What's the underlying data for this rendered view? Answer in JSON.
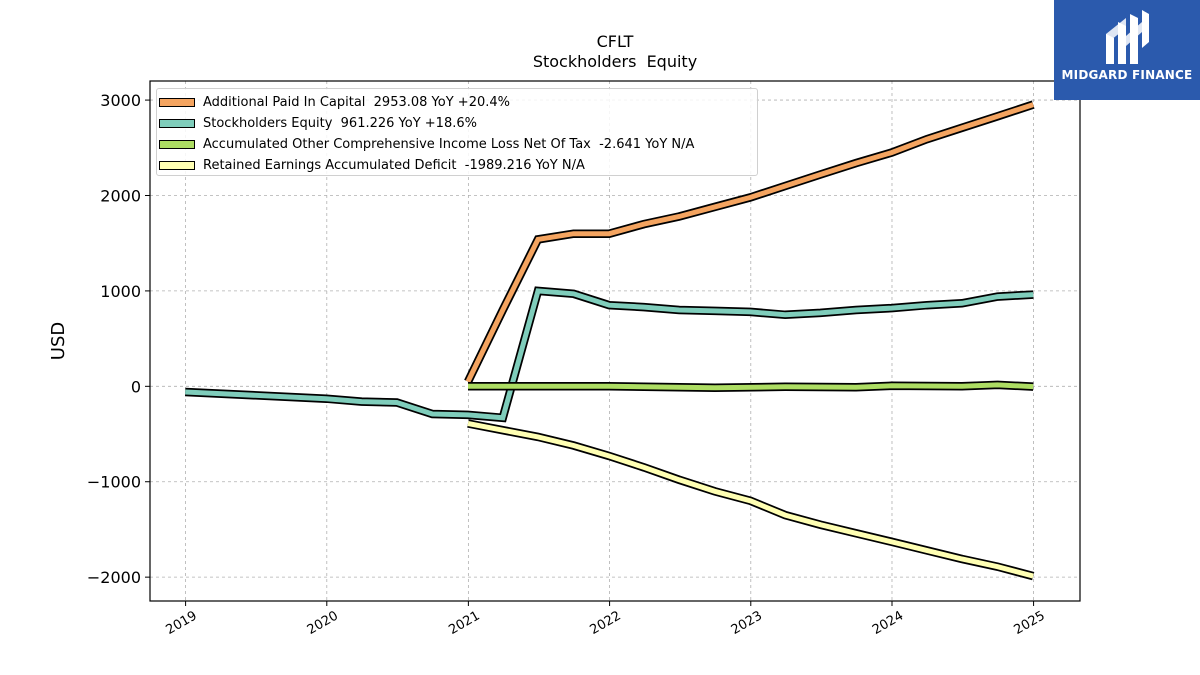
{
  "chart_data": {
    "type": "line",
    "title": "CFLT",
    "subtitle": "Stockholders  Equity",
    "xlabel": "",
    "ylabel": "USD",
    "xlim": [
      "2018-10-01",
      "2025-05-01"
    ],
    "ylim": [
      -2250,
      3200
    ],
    "x_ticks": [
      "2019",
      "2020",
      "2021",
      "2022",
      "2023",
      "2024",
      "2025"
    ],
    "y_ticks": [
      3000,
      2000,
      1000,
      0,
      -1000,
      -2000
    ],
    "y_tick_labels": [
      "3000",
      "2000",
      "1000",
      "0",
      "−1000",
      "−2000"
    ],
    "grid": true,
    "legend_position": "top-left",
    "series": [
      {
        "name": "Additional Paid In Capital  2953.08 YoY +20.4%",
        "color": "#f4a460",
        "points": [
          [
            "2020-12-31",
            50
          ],
          [
            "2021-03-31",
            800
          ],
          [
            "2021-06-30",
            1540
          ],
          [
            "2021-09-30",
            1600
          ],
          [
            "2021-12-31",
            1600
          ],
          [
            "2022-03-31",
            1700
          ],
          [
            "2022-06-30",
            1780
          ],
          [
            "2022-09-30",
            1880
          ],
          [
            "2022-12-31",
            1980
          ],
          [
            "2023-03-31",
            2100
          ],
          [
            "2023-06-30",
            2220
          ],
          [
            "2023-09-30",
            2340
          ],
          [
            "2023-12-31",
            2450
          ],
          [
            "2024-03-31",
            2590
          ],
          [
            "2024-06-30",
            2710
          ],
          [
            "2024-09-30",
            2830
          ],
          [
            "2024-12-31",
            2953.08
          ]
        ]
      },
      {
        "name": "Stockholders Equity  961.226 YoY +18.6%",
        "color": "#7fcdbb",
        "points": [
          [
            "2018-12-31",
            -60
          ],
          [
            "2019-12-31",
            -130
          ],
          [
            "2020-03-31",
            -160
          ],
          [
            "2020-06-30",
            -170
          ],
          [
            "2020-09-30",
            -290
          ],
          [
            "2020-12-31",
            -300
          ],
          [
            "2021-03-31",
            -330
          ],
          [
            "2021-06-30",
            1000
          ],
          [
            "2021-09-30",
            970
          ],
          [
            "2021-12-31",
            850
          ],
          [
            "2022-03-31",
            830
          ],
          [
            "2022-06-30",
            800
          ],
          [
            "2022-09-30",
            790
          ],
          [
            "2022-12-31",
            780
          ],
          [
            "2023-03-31",
            750
          ],
          [
            "2023-06-30",
            770
          ],
          [
            "2023-09-30",
            800
          ],
          [
            "2023-12-31",
            820
          ],
          [
            "2024-03-31",
            850
          ],
          [
            "2024-06-30",
            870
          ],
          [
            "2024-09-30",
            940
          ],
          [
            "2024-12-31",
            961.226
          ]
        ]
      },
      {
        "name": "Accumulated Other Comprehensive Income Loss Net Of Tax  -2.641 YoY N/A",
        "color": "#addd63",
        "points": [
          [
            "2020-12-31",
            0
          ],
          [
            "2021-06-30",
            0
          ],
          [
            "2021-12-31",
            0
          ],
          [
            "2022-06-30",
            -10
          ],
          [
            "2022-09-30",
            -15
          ],
          [
            "2023-03-31",
            -5
          ],
          [
            "2023-09-30",
            -10
          ],
          [
            "2023-12-31",
            5
          ],
          [
            "2024-06-30",
            0
          ],
          [
            "2024-09-30",
            15
          ],
          [
            "2024-12-31",
            -2.641
          ]
        ]
      },
      {
        "name": "Retained Earnings Accumulated Deficit  -1989.216 YoY N/A",
        "color": "#ffffb3",
        "points": [
          [
            "2020-12-31",
            -390
          ],
          [
            "2021-03-31",
            -460
          ],
          [
            "2021-06-30",
            -530
          ],
          [
            "2021-09-30",
            -620
          ],
          [
            "2021-12-31",
            -730
          ],
          [
            "2022-03-31",
            -850
          ],
          [
            "2022-06-30",
            -980
          ],
          [
            "2022-09-30",
            -1100
          ],
          [
            "2022-12-31",
            -1200
          ],
          [
            "2023-03-31",
            -1350
          ],
          [
            "2023-06-30",
            -1450
          ],
          [
            "2023-09-30",
            -1540
          ],
          [
            "2023-12-31",
            -1630
          ],
          [
            "2024-03-31",
            -1720
          ],
          [
            "2024-06-30",
            -1810
          ],
          [
            "2024-09-30",
            -1890
          ],
          [
            "2024-12-31",
            -1989.216
          ]
        ]
      }
    ]
  },
  "logo": {
    "text": "MIDGARD FINANCE",
    "icon": "midgard-logo-mark",
    "background": "#2b5aad"
  }
}
